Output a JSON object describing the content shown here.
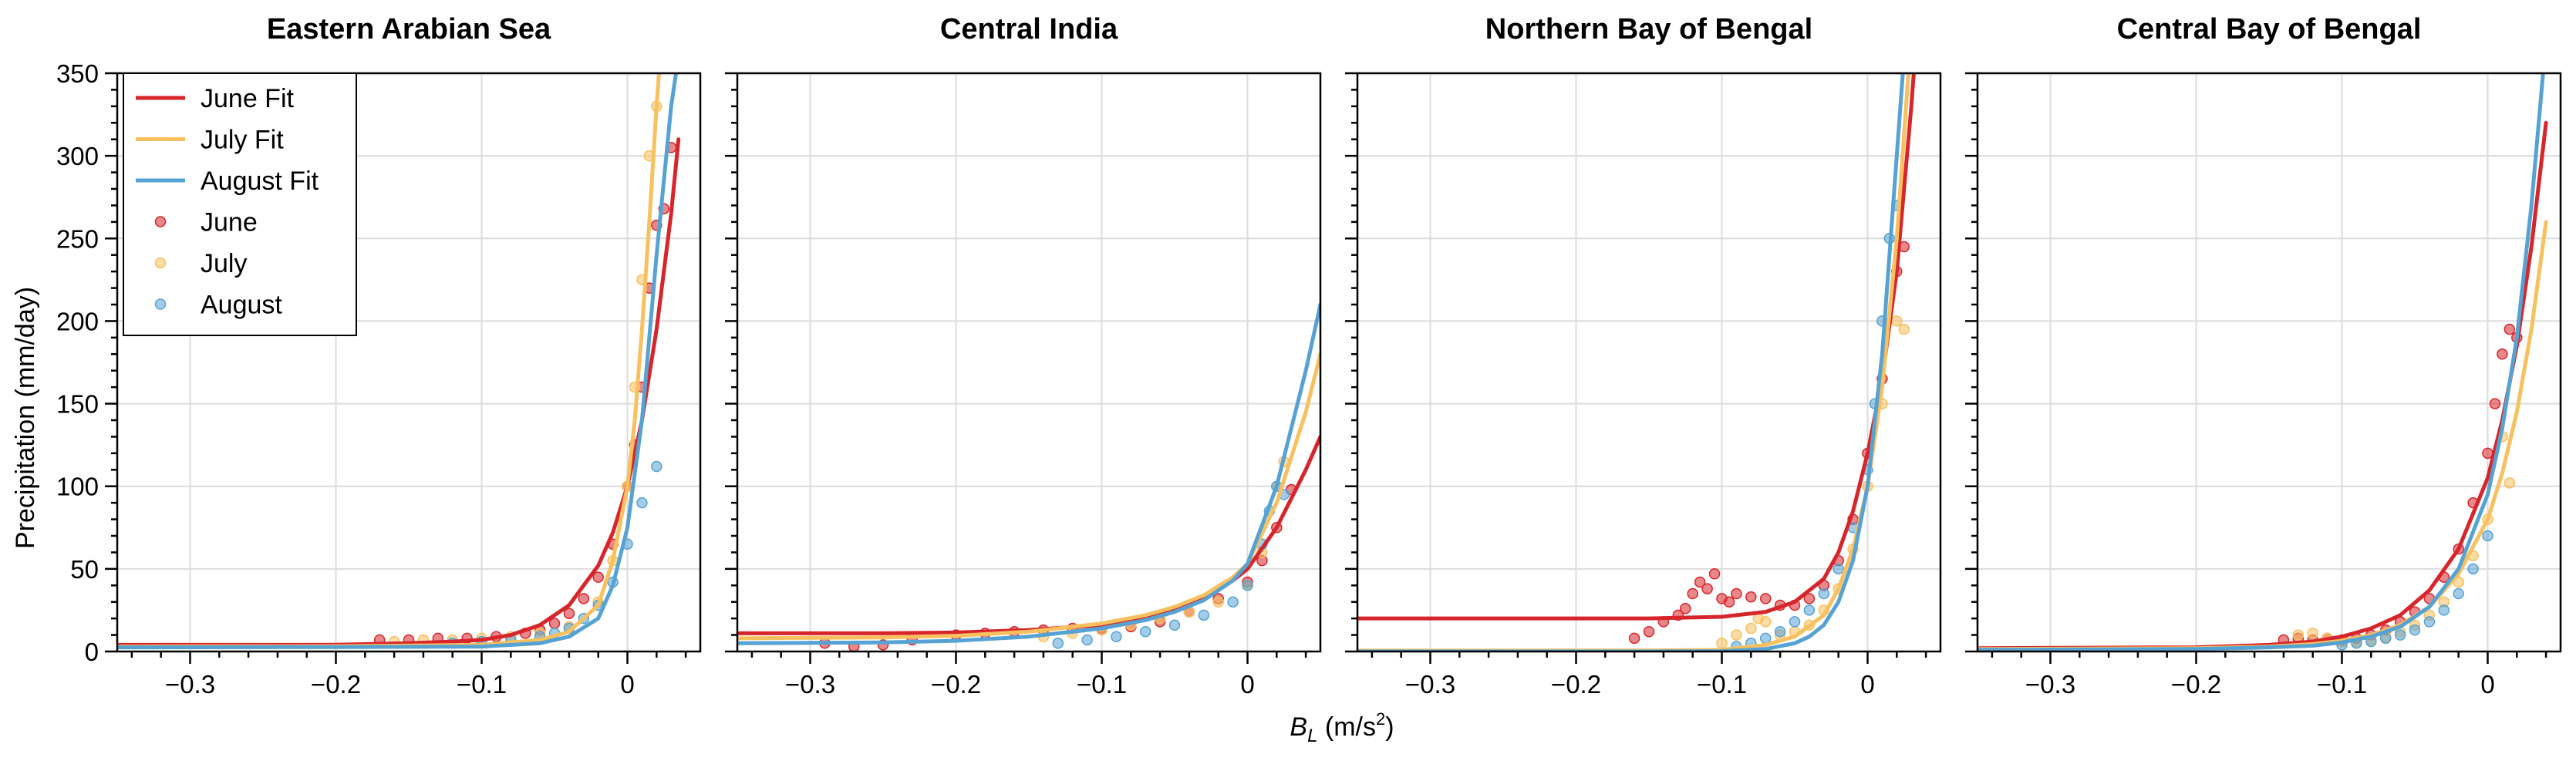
{
  "chart_data": {
    "type": "scatter",
    "shared": {
      "xlabel_main": "B",
      "xlabel_sub": "L",
      "xlabel_units": "(m/s",
      "xlabel_units_sup": "2",
      "xlabel_units_close": ")",
      "ylabel": "Precipitation (mm/day)",
      "xlim": [
        -0.35,
        0.05
      ],
      "ylim": [
        0,
        350
      ],
      "xticks": [
        -0.3,
        -0.2,
        -0.1,
        0
      ],
      "xtick_labels": [
        "−0.3",
        "−0.2",
        "−0.1",
        "0"
      ],
      "yticks": [
        0,
        50,
        100,
        150,
        200,
        250,
        300,
        350
      ],
      "ytick_labels": [
        "0",
        "50",
        "100",
        "150",
        "200",
        "250",
        "300",
        "350"
      ],
      "grid": true,
      "colors": {
        "June": "#d7262b",
        "July": "#f8c05f",
        "August": "#56a3d3"
      },
      "legend": {
        "placement": "top-left",
        "entries": [
          {
            "label": "June Fit",
            "kind": "line",
            "color": "#d7262b"
          },
          {
            "label": "July Fit",
            "kind": "line",
            "color": "#f8c05f"
          },
          {
            "label": "August Fit",
            "kind": "line",
            "color": "#56a3d3"
          },
          {
            "label": "June",
            "kind": "marker",
            "color": "#d7262b"
          },
          {
            "label": "July",
            "kind": "marker",
            "color": "#f8c05f"
          },
          {
            "label": "August",
            "kind": "marker",
            "color": "#56a3d3"
          }
        ]
      }
    },
    "panels": [
      {
        "title": "Eastern Arabian Sea",
        "fits": [
          {
            "name": "June Fit",
            "color": "#d7262b",
            "x": [
              -0.35,
              -0.25,
              -0.2,
              -0.15,
              -0.12,
              -0.1,
              -0.08,
              -0.06,
              -0.04,
              -0.02,
              -0.01,
              0,
              0.01,
              0.02,
              0.03,
              0.035
            ],
            "y": [
              4,
              4,
              4.1,
              5,
              6,
              7,
              10,
              16,
              28,
              52,
              72,
              100,
              140,
              195,
              265,
              310
            ]
          },
          {
            "name": "July Fit",
            "color": "#f8c05f",
            "x": [
              -0.35,
              -0.2,
              -0.1,
              -0.06,
              -0.04,
              -0.02,
              -0.01,
              0,
              0.005,
              0.01,
              0.015,
              0.02,
              0.025,
              0.03
            ],
            "y": [
              3,
              3.2,
              4,
              7,
              12,
              28,
              55,
              100,
              140,
              195,
              260,
              330,
              390,
              420
            ]
          },
          {
            "name": "August Fit",
            "color": "#56a3d3",
            "x": [
              -0.35,
              -0.2,
              -0.1,
              -0.06,
              -0.04,
              -0.02,
              -0.01,
              0,
              0.01,
              0.02,
              0.03,
              0.04
            ],
            "y": [
              2.5,
              2.7,
              3,
              5,
              9,
              20,
              40,
              75,
              140,
              240,
              330,
              390
            ]
          }
        ],
        "points": [
          {
            "name": "June",
            "color": "#d7262b",
            "x": [
              -0.17,
              -0.15,
              -0.13,
              -0.11,
              -0.09,
              -0.07,
              -0.06,
              -0.05,
              -0.04,
              -0.03,
              -0.02,
              -0.01,
              0,
              0.005,
              0.01,
              0.015,
              0.02,
              0.025,
              0.03
            ],
            "y": [
              7,
              7,
              8,
              8,
              9,
              11,
              13,
              17,
              23,
              32,
              45,
              65,
              100,
              125,
              160,
              220,
              258,
              268,
              305
            ]
          },
          {
            "name": "July",
            "color": "#f8c05f",
            "x": [
              -0.16,
              -0.14,
              -0.12,
              -0.1,
              -0.08,
              -0.06,
              -0.04,
              -0.02,
              -0.01,
              0,
              0.005,
              0.01,
              0.015,
              0.02
            ],
            "y": [
              6,
              7,
              7,
              8,
              9,
              11,
              15,
              30,
              55,
              100,
              160,
              225,
              300,
              330
            ]
          },
          {
            "name": "August",
            "color": "#56a3d3",
            "x": [
              -0.12,
              -0.1,
              -0.08,
              -0.06,
              -0.05,
              -0.04,
              -0.03,
              -0.02,
              -0.01,
              0,
              0.01,
              0.02
            ],
            "y": [
              5,
              6,
              7,
              9,
              11,
              14,
              20,
              28,
              42,
              65,
              90,
              112
            ]
          }
        ]
      },
      {
        "title": "Central India",
        "fits": [
          {
            "name": "June Fit",
            "color": "#d7262b",
            "x": [
              -0.35,
              -0.25,
              -0.2,
              -0.15,
              -0.1,
              -0.07,
              -0.05,
              -0.03,
              -0.01,
              0,
              0.02,
              0.04,
              0.05
            ],
            "y": [
              11,
              11,
              11.5,
              13,
              16,
              20,
              25,
              32,
              43,
              50,
              75,
              110,
              130
            ]
          },
          {
            "name": "July Fit",
            "color": "#f8c05f",
            "x": [
              -0.35,
              -0.25,
              -0.2,
              -0.15,
              -0.1,
              -0.07,
              -0.05,
              -0.03,
              -0.01,
              0,
              0.02,
              0.04,
              0.05
            ],
            "y": [
              8,
              8.5,
              9.5,
              12,
              17,
              22,
              27,
              34,
              45,
              53,
              90,
              145,
              180
            ]
          },
          {
            "name": "August Fit",
            "color": "#56a3d3",
            "x": [
              -0.35,
              -0.25,
              -0.2,
              -0.15,
              -0.1,
              -0.07,
              -0.05,
              -0.03,
              -0.01,
              0,
              0.02,
              0.04,
              0.05
            ],
            "y": [
              5,
              5.5,
              6.5,
              9,
              14,
              19,
              24,
              31,
              43,
              53,
              100,
              170,
              210
            ]
          }
        ],
        "points": [
          {
            "name": "June",
            "color": "#d7262b",
            "x": [
              -0.29,
              -0.27,
              -0.25,
              -0.23,
              -0.2,
              -0.18,
              -0.16,
              -0.14,
              -0.12,
              -0.1,
              -0.08,
              -0.06,
              -0.04,
              -0.02,
              0,
              0.01,
              0.02,
              0.03
            ],
            "y": [
              5,
              3,
              4,
              7,
              10,
              11,
              12,
              13,
              14,
              14,
              15,
              18,
              24,
              32,
              42,
              55,
              75,
              98
            ]
          },
          {
            "name": "July",
            "color": "#f8c05f",
            "x": [
              -0.14,
              -0.12,
              -0.1,
              -0.08,
              -0.06,
              -0.04,
              -0.02,
              0,
              0.01,
              0.02,
              0.025
            ],
            "y": [
              9,
              11,
              13,
              16,
              20,
              24,
              30,
              40,
              60,
              100,
              115
            ]
          },
          {
            "name": "August",
            "color": "#56a3d3",
            "x": [
              -0.13,
              -0.11,
              -0.09,
              -0.07,
              -0.05,
              -0.03,
              -0.01,
              0,
              0.01,
              0.015,
              0.02,
              0.025
            ],
            "y": [
              5,
              7,
              9,
              12,
              16,
              22,
              30,
              40,
              65,
              85,
              100,
              95
            ]
          }
        ]
      },
      {
        "title": "Northern Bay of Bengal",
        "fits": [
          {
            "name": "June Fit",
            "color": "#d7262b",
            "x": [
              -0.35,
              -0.15,
              -0.1,
              -0.07,
              -0.05,
              -0.03,
              -0.02,
              -0.01,
              0,
              0.01,
              0.02,
              0.03,
              0.035
            ],
            "y": [
              20,
              20,
              21,
              24,
              30,
              44,
              60,
              85,
              120,
              165,
              230,
              330,
              390
            ]
          },
          {
            "name": "July Fit",
            "color": "#f8c05f",
            "x": [
              -0.35,
              -0.15,
              -0.1,
              -0.07,
              -0.05,
              -0.03,
              -0.02,
              -0.01,
              0,
              0.01,
              0.02,
              0.03,
              0.035
            ],
            "y": [
              0.5,
              0.6,
              1,
              4,
              9,
              22,
              38,
              62,
              100,
              160,
              250,
              375,
              420
            ]
          },
          {
            "name": "August Fit",
            "color": "#56a3d3",
            "x": [
              -0.35,
              -0.15,
              -0.1,
              -0.07,
              -0.05,
              -0.04,
              -0.03,
              -0.02,
              -0.01,
              0,
              0.01,
              0.02,
              0.03
            ],
            "y": [
              0,
              0,
              0.2,
              1.5,
              5,
              9,
              16,
              30,
              55,
              100,
              180,
              300,
              420
            ]
          }
        ],
        "points": [
          {
            "name": "June",
            "color": "#d7262b",
            "x": [
              -0.16,
              -0.15,
              -0.14,
              -0.13,
              -0.125,
              -0.12,
              -0.115,
              -0.11,
              -0.105,
              -0.1,
              -0.095,
              -0.09,
              -0.08,
              -0.07,
              -0.06,
              -0.05,
              -0.04,
              -0.03,
              -0.02,
              -0.01,
              0,
              0.01,
              0.02,
              0.025
            ],
            "y": [
              8,
              12,
              18,
              22,
              26,
              35,
              42,
              38,
              47,
              32,
              30,
              35,
              33,
              32,
              28,
              28,
              32,
              40,
              55,
              80,
              120,
              165,
              230,
              245
            ]
          },
          {
            "name": "July",
            "color": "#f8c05f",
            "x": [
              -0.1,
              -0.09,
              -0.08,
              -0.075,
              -0.07,
              -0.06,
              -0.05,
              -0.04,
              -0.03,
              -0.02,
              -0.01,
              0,
              0.01,
              0.02,
              0.025
            ],
            "y": [
              5,
              10,
              14,
              20,
              18,
              10,
              12,
              16,
              25,
              38,
              62,
              100,
              150,
              200,
              195
            ]
          },
          {
            "name": "August",
            "color": "#56a3d3",
            "x": [
              -0.09,
              -0.08,
              -0.07,
              -0.06,
              -0.05,
              -0.04,
              -0.03,
              -0.02,
              -0.01,
              0,
              0.005,
              0.01,
              0.015,
              0.02
            ],
            "y": [
              3,
              5,
              8,
              12,
              18,
              25,
              35,
              50,
              75,
              110,
              150,
              200,
              250,
              270
            ]
          }
        ]
      },
      {
        "title": "Central Bay of Bengal",
        "fits": [
          {
            "name": "June Fit",
            "color": "#d7262b",
            "x": [
              -0.35,
              -0.2,
              -0.15,
              -0.12,
              -0.1,
              -0.08,
              -0.06,
              -0.04,
              -0.02,
              0,
              0.01,
              0.02,
              0.03,
              0.04
            ],
            "y": [
              2,
              2.5,
              4,
              6,
              9,
              14,
              22,
              37,
              62,
              105,
              140,
              185,
              245,
              320
            ]
          },
          {
            "name": "July Fit",
            "color": "#f8c05f",
            "x": [
              -0.35,
              -0.2,
              -0.15,
              -0.12,
              -0.1,
              -0.08,
              -0.06,
              -0.04,
              -0.02,
              0,
              0.01,
              0.02,
              0.03,
              0.04
            ],
            "y": [
              1.5,
              2,
              3,
              4.5,
              6.5,
              10,
              16,
              27,
              47,
              80,
              108,
              145,
              195,
              260
            ]
          },
          {
            "name": "August Fit",
            "color": "#56a3d3",
            "x": [
              -0.35,
              -0.2,
              -0.15,
              -0.12,
              -0.1,
              -0.08,
              -0.06,
              -0.04,
              -0.02,
              0,
              0.01,
              0.02,
              0.03,
              0.04,
              0.045
            ],
            "y": [
              1,
              1.5,
              2.5,
              3.5,
              5.5,
              9,
              15,
              27,
              50,
              95,
              135,
              190,
              270,
              370,
              420
            ]
          }
        ],
        "points": [
          {
            "name": "June",
            "color": "#d7262b",
            "x": [
              -0.14,
              -0.13,
              -0.12,
              -0.11,
              -0.1,
              -0.09,
              -0.08,
              -0.07,
              -0.06,
              -0.05,
              -0.04,
              -0.03,
              -0.02,
              -0.01,
              0,
              0.005,
              0.01,
              0.015,
              0.02
            ],
            "y": [
              7,
              8,
              7,
              8,
              7,
              8,
              10,
              13,
              18,
              24,
              32,
              45,
              62,
              90,
              120,
              150,
              180,
              195,
              190
            ]
          },
          {
            "name": "July",
            "color": "#f8c05f",
            "x": [
              -0.13,
              -0.12,
              -0.11,
              -0.1,
              -0.09,
              -0.08,
              -0.07,
              -0.06,
              -0.05,
              -0.04,
              -0.03,
              -0.02,
              -0.01,
              0,
              0.01,
              0.015
            ],
            "y": [
              10,
              11,
              8,
              6,
              6,
              7,
              9,
              12,
              16,
              22,
              30,
              42,
              58,
              80,
              130,
              102
            ]
          },
          {
            "name": "August",
            "color": "#56a3d3",
            "x": [
              -0.1,
              -0.09,
              -0.08,
              -0.07,
              -0.06,
              -0.05,
              -0.04,
              -0.03,
              -0.02,
              -0.01,
              0
            ],
            "y": [
              4,
              5,
              6,
              8,
              10,
              13,
              18,
              25,
              35,
              50,
              70
            ]
          }
        ]
      }
    ]
  }
}
